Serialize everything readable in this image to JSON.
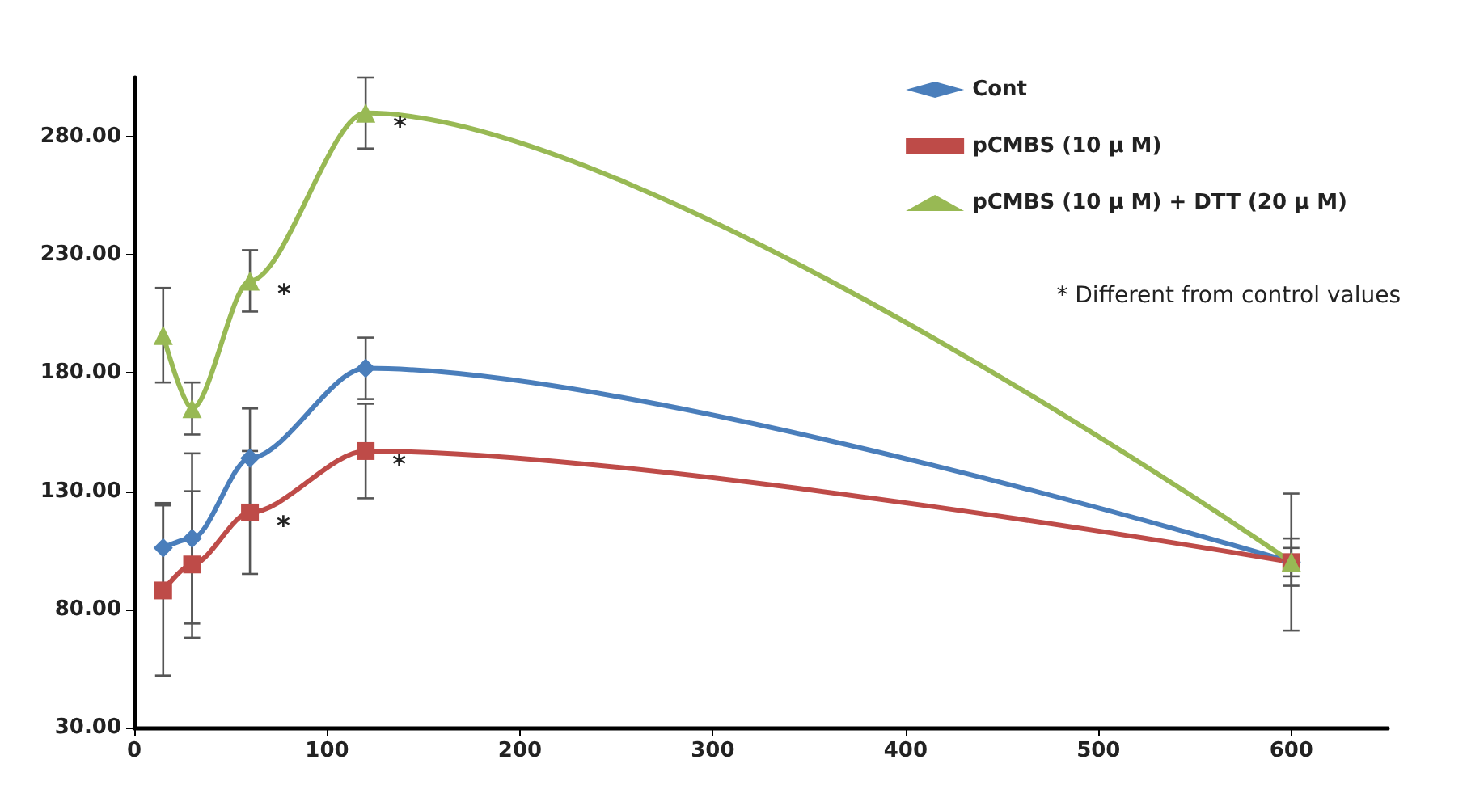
{
  "chart_data": {
    "type": "line",
    "x": [
      15,
      30,
      60,
      120,
      600
    ],
    "series": [
      {
        "name": "Cont",
        "color": "#4a7ebb",
        "values": [
          106,
          110,
          144,
          182,
          100
        ],
        "errors": [
          19,
          36,
          21,
          13,
          10
        ],
        "marker": "diamond"
      },
      {
        "name": "pCMBS (10 μ M)",
        "color": "#be4b48",
        "values": [
          88,
          99,
          121,
          147,
          100
        ],
        "errors": [
          36,
          31,
          26,
          20,
          6
        ],
        "marker": "square",
        "value_labels": [
          null,
          null,
          "*",
          "*",
          null
        ]
      },
      {
        "name": "pCMBS (10 μ M) + DTT (20 μ M)",
        "color": "#98b954",
        "values": [
          196,
          165,
          219,
          290,
          100
        ],
        "errors": [
          20,
          11,
          13,
          15,
          29
        ],
        "marker": "triangle",
        "value_labels": [
          null,
          null,
          "*",
          "*",
          null
        ]
      }
    ],
    "xlim": [
      0,
      650
    ],
    "xticks": [
      0,
      100,
      200,
      300,
      400,
      500,
      600
    ],
    "ylim": [
      30,
      305
    ],
    "yticks": [
      {
        "value": 30,
        "label": "30.00"
      },
      {
        "value": 80,
        "label": "80.00"
      },
      {
        "value": 130,
        "label": "130.00"
      },
      {
        "value": 180,
        "label": "180.00"
      },
      {
        "value": 230,
        "label": "230.00"
      },
      {
        "value": 280,
        "label": "280.00"
      }
    ],
    "grid": false,
    "legend": "top right",
    "annotations": [
      "* Different from control values"
    ]
  }
}
